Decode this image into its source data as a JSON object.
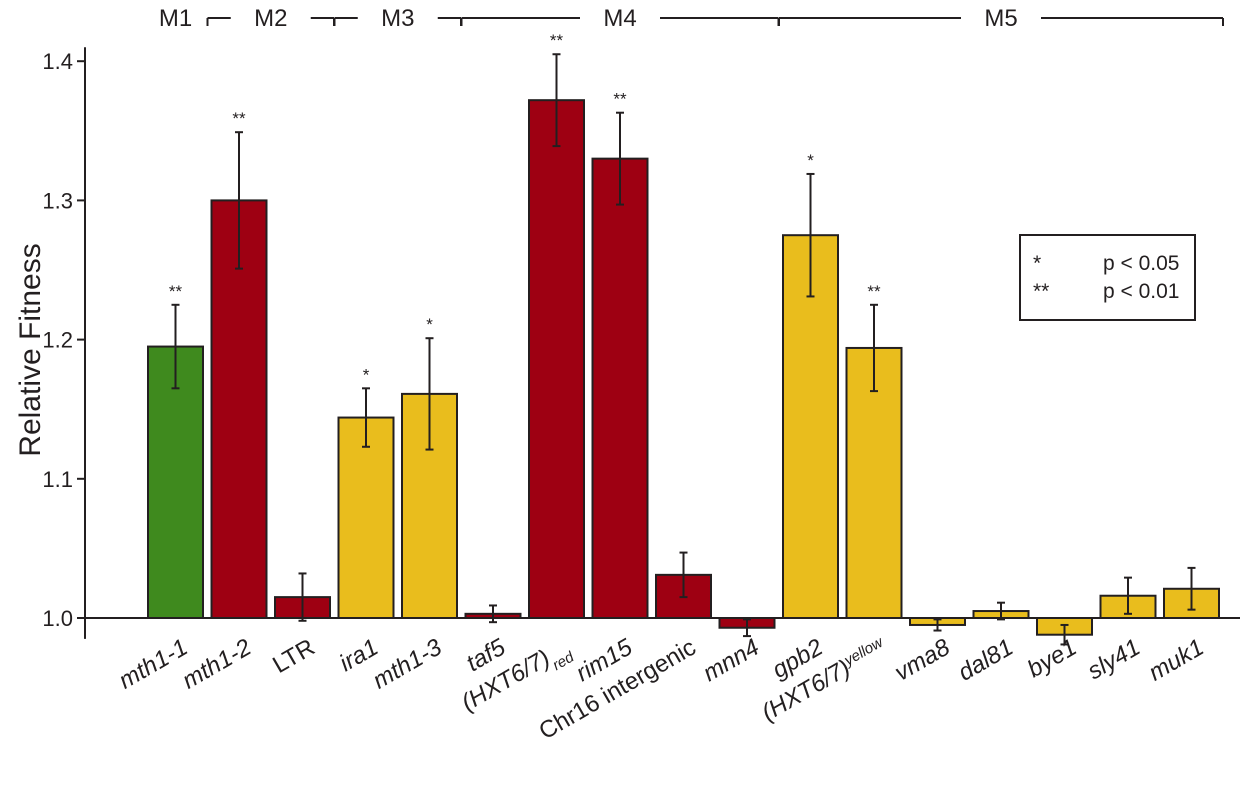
{
  "chart_data": {
    "type": "bar",
    "xlabel": "",
    "ylabel": "Relative Fitness",
    "ylim": [
      0.985,
      1.41
    ],
    "baseline": 1.0,
    "yticks": [
      "1.0",
      "1.1",
      "1.2",
      "1.3",
      "1.4"
    ],
    "ytick_values": [
      1.0,
      1.1,
      1.2,
      1.3,
      1.4
    ],
    "grid": false,
    "colors": {
      "green": "#3f8a1e",
      "red": "#9e0012",
      "yellow": "#e9bd1d"
    },
    "bars": [
      {
        "label": "mth1-1",
        "italic": true,
        "value": 1.195,
        "error": 0.03,
        "color": "green",
        "significance": "**"
      },
      {
        "label": "mth1-2",
        "italic": true,
        "value": 1.3,
        "error": 0.049,
        "color": "red",
        "significance": "**"
      },
      {
        "label": "LTR",
        "italic": false,
        "value": 1.015,
        "error": 0.017,
        "color": "red",
        "significance": ""
      },
      {
        "label": "ira1",
        "italic": true,
        "value": 1.144,
        "error": 0.021,
        "color": "yellow",
        "significance": "*"
      },
      {
        "label": "mth1-3",
        "italic": true,
        "value": 1.161,
        "error": 0.04,
        "color": "yellow",
        "significance": "*"
      },
      {
        "label": "taf5",
        "italic": true,
        "value": 1.003,
        "error": 0.006,
        "color": "red",
        "significance": ""
      },
      {
        "label": "(HXT6/7)",
        "sub": "red",
        "italic": true,
        "value": 1.372,
        "error": 0.033,
        "color": "red",
        "significance": "**"
      },
      {
        "label": "rim15",
        "italic": true,
        "value": 1.33,
        "error": 0.033,
        "color": "red",
        "significance": "**"
      },
      {
        "label": "Chr16 intergenic",
        "italic": false,
        "value": 1.031,
        "error": 0.016,
        "color": "red",
        "significance": ""
      },
      {
        "label": "mnn4",
        "italic": true,
        "value": 0.993,
        "error": 0.006,
        "color": "red",
        "significance": ""
      },
      {
        "label": "gpb2",
        "italic": true,
        "value": 1.275,
        "error": 0.044,
        "color": "yellow",
        "significance": "*"
      },
      {
        "label": "(HXT6/7)",
        "sup": "yellow",
        "italic": true,
        "value": 1.194,
        "error": 0.031,
        "color": "yellow",
        "significance": "**"
      },
      {
        "label": "vma8",
        "italic": true,
        "value": 0.995,
        "error": 0.004,
        "color": "yellow",
        "significance": ""
      },
      {
        "label": "dal81",
        "italic": true,
        "value": 1.005,
        "error": 0.006,
        "color": "yellow",
        "significance": ""
      },
      {
        "label": "bye1",
        "italic": true,
        "value": 0.988,
        "error": 0.007,
        "color": "yellow",
        "significance": ""
      },
      {
        "label": "sly41",
        "italic": true,
        "value": 1.016,
        "error": 0.013,
        "color": "yellow",
        "significance": ""
      },
      {
        "label": "muk1",
        "italic": true,
        "value": 1.021,
        "error": 0.015,
        "color": "yellow",
        "significance": ""
      }
    ],
    "groups": [
      {
        "label": "M1",
        "start": 0,
        "end": 0
      },
      {
        "label": "M2",
        "start": 1,
        "end": 2
      },
      {
        "label": "M3",
        "start": 3,
        "end": 4
      },
      {
        "label": "M4",
        "start": 5,
        "end": 9
      },
      {
        "label": "M5",
        "start": 10,
        "end": 16
      }
    ],
    "legend": {
      "position": "right",
      "entries": [
        {
          "symbol": "*",
          "text": "p < 0.05"
        },
        {
          "symbol": "**",
          "text": "p < 0.01"
        }
      ]
    }
  }
}
